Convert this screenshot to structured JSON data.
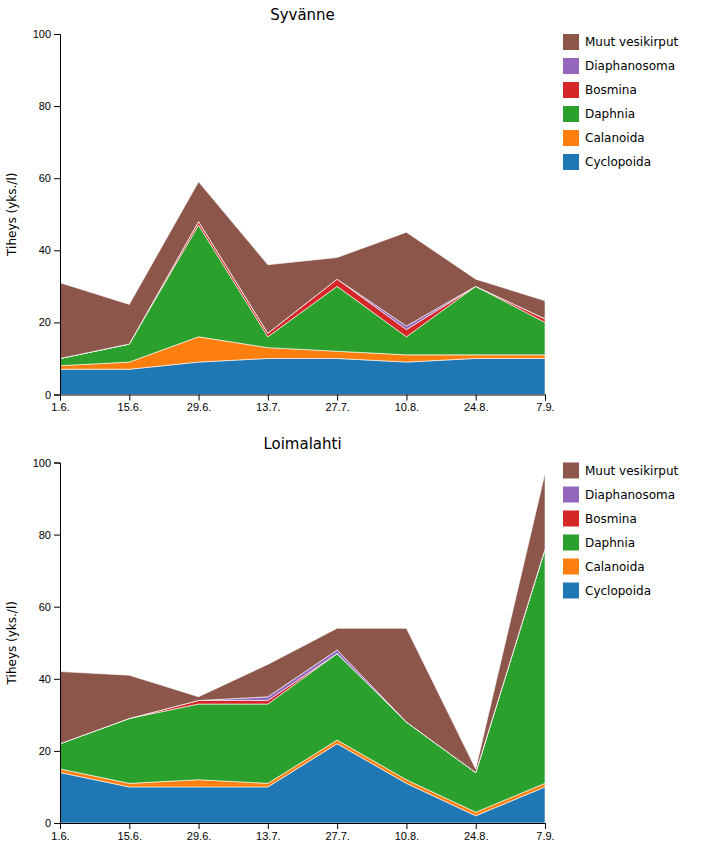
{
  "chart_data": [
    {
      "type": "area",
      "title": "Syvänne",
      "y_label": "Tiheys (yks./l)",
      "categories": [
        "1.6.",
        "15.6.",
        "29.6.",
        "13.7.",
        "27.7.",
        "10.8.",
        "24.8.",
        "7.9."
      ],
      "series": [
        {
          "name": "Cyclopoida",
          "values": [
            7,
            7,
            9,
            10,
            10,
            9,
            10,
            10
          ]
        },
        {
          "name": "Calanoida",
          "values": [
            1,
            2,
            7,
            3,
            2,
            2,
            1,
            1
          ]
        },
        {
          "name": "Daphnia",
          "values": [
            2,
            5,
            31,
            3,
            18,
            5,
            19,
            9
          ]
        },
        {
          "name": "Bosmina",
          "values": [
            0,
            0,
            1,
            1,
            2,
            2,
            0,
            1
          ]
        },
        {
          "name": "Diaphanosoma",
          "values": [
            0,
            0,
            0,
            0,
            0,
            1,
            0,
            0
          ]
        },
        {
          "name": "Muut vesikirput",
          "values": [
            21,
            11,
            11,
            19,
            6,
            26,
            2,
            5
          ]
        }
      ],
      "stacked": true,
      "ylim": [
        0,
        100
      ],
      "yticks": [
        0,
        20,
        40,
        60,
        80,
        100
      ],
      "grid": false,
      "legend": "right"
    },
    {
      "type": "area",
      "title": "Loimalahti",
      "y_label": "Tiheys (yks./l)",
      "categories": [
        "1.6.",
        "15.6.",
        "29.6.",
        "13.7.",
        "27.7.",
        "10.8.",
        "24.8.",
        "7.9."
      ],
      "series": [
        {
          "name": "Cyclopoida",
          "values": [
            14,
            10,
            10,
            10,
            22,
            11,
            2,
            10
          ]
        },
        {
          "name": "Calanoida",
          "values": [
            1,
            1,
            2,
            1,
            1,
            1,
            1,
            1
          ]
        },
        {
          "name": "Daphnia",
          "values": [
            7,
            18,
            21,
            22,
            24,
            16,
            11,
            65
          ]
        },
        {
          "name": "Bosmina",
          "values": [
            0,
            0,
            1,
            1,
            0,
            0,
            0,
            0
          ]
        },
        {
          "name": "Diaphanosoma",
          "values": [
            0,
            0,
            0,
            1,
            1,
            0,
            0,
            0
          ]
        },
        {
          "name": "Muut vesikirput",
          "values": [
            20,
            12,
            1,
            9,
            6,
            26,
            1,
            21
          ]
        }
      ],
      "stacked": true,
      "ylim": [
        0,
        100
      ],
      "yticks": [
        0,
        20,
        40,
        60,
        80,
        100
      ],
      "grid": false,
      "legend": "right"
    }
  ]
}
